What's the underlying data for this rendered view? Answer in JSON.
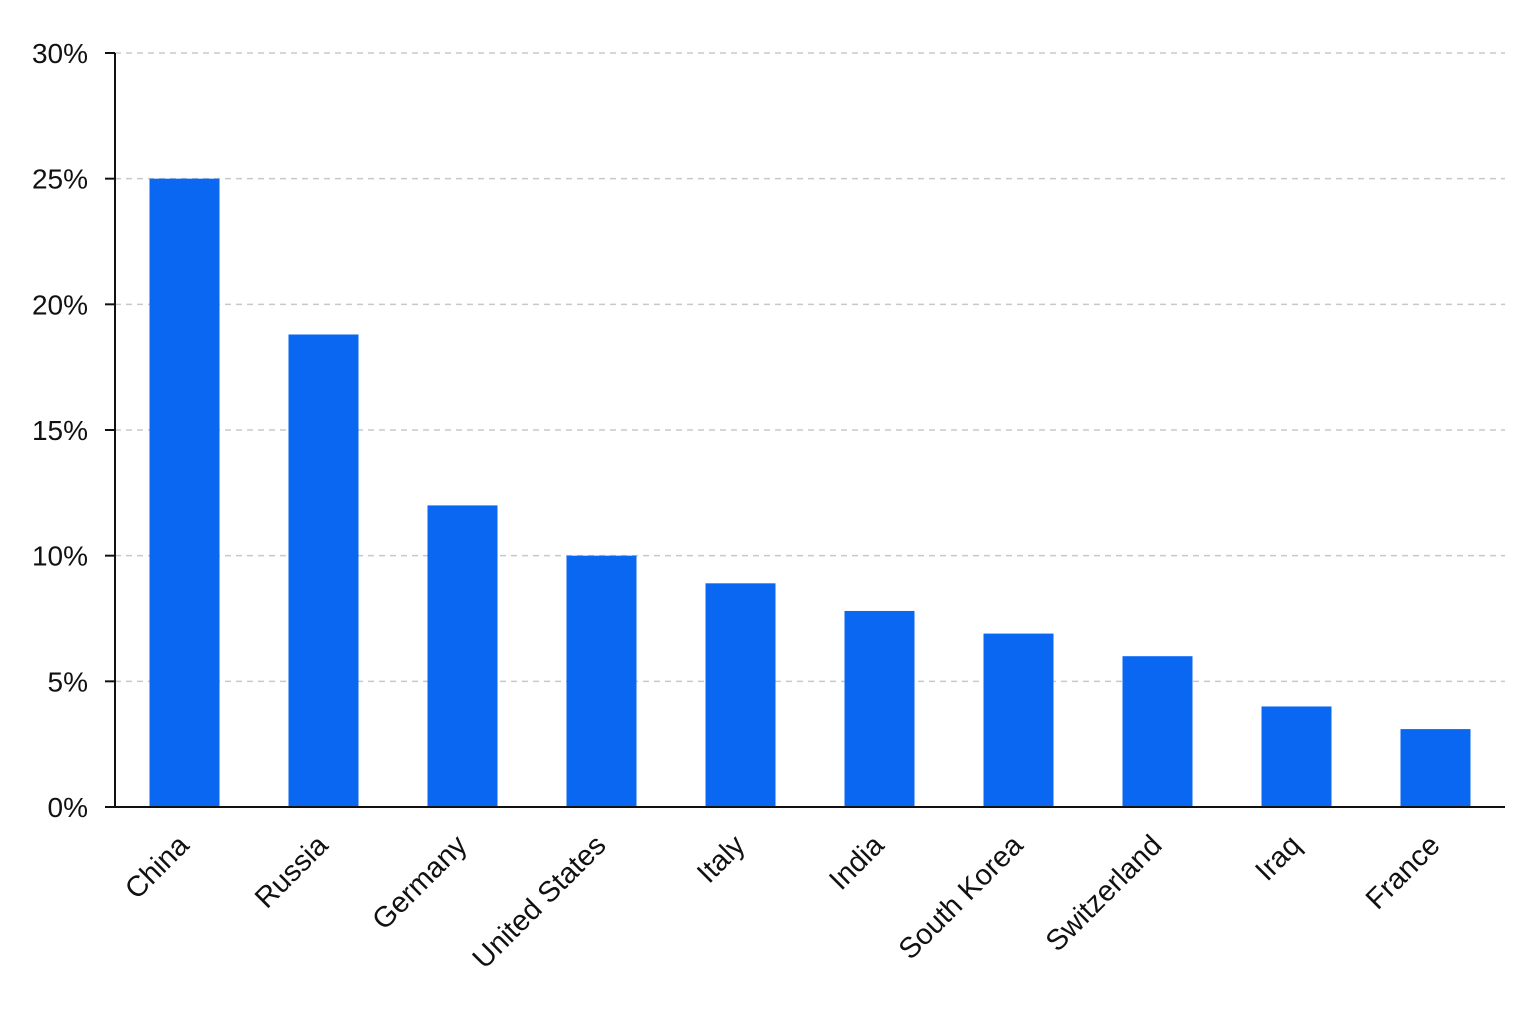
{
  "chart_data": {
    "type": "bar",
    "categories": [
      "China",
      "Russia",
      "Germany",
      "United States",
      "Italy",
      "India",
      "South Korea",
      "Switzerland",
      "Iraq",
      "France"
    ],
    "values": [
      25,
      18.8,
      12,
      10,
      8.9,
      7.8,
      6.9,
      6,
      4,
      3.1
    ],
    "yticks": [
      "0%",
      "5%",
      "10%",
      "15%",
      "20%",
      "25%",
      "30%"
    ],
    "ylim": [
      0,
      30
    ],
    "grid": true,
    "bar_color": "#0a67f2",
    "axis_color": "#111111",
    "grid_color": "#c8c8c8"
  }
}
